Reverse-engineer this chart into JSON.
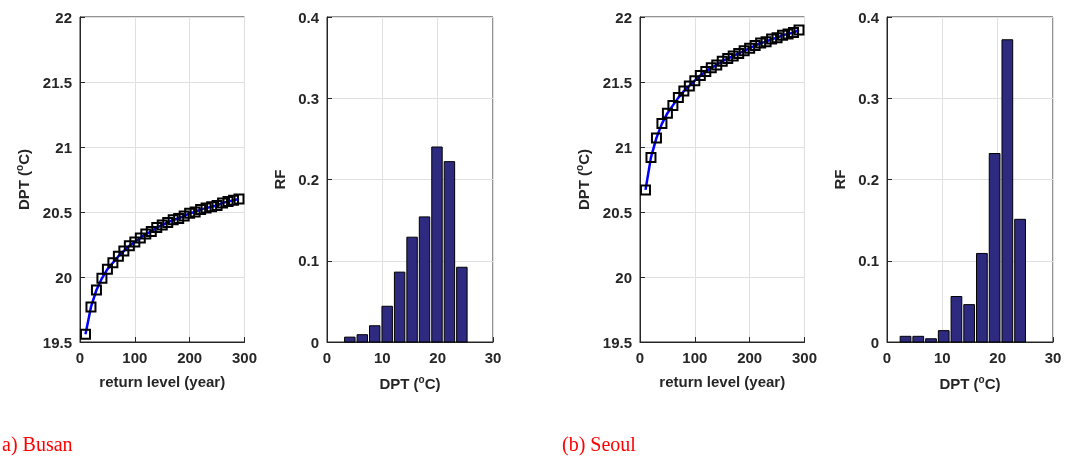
{
  "chart_data": [
    {
      "type": "line",
      "xlabel": "return level (year)",
      "ylabel": "DPT ($^{o}$C)",
      "x": [
        10,
        20,
        30,
        40,
        50,
        60,
        70,
        80,
        90,
        100,
        110,
        120,
        130,
        140,
        150,
        160,
        170,
        180,
        190,
        200,
        210,
        220,
        230,
        240,
        250,
        260,
        270,
        280,
        290
      ],
      "series": [
        {
          "color": "#0000ff",
          "values": [
            19.56,
            19.77,
            19.9,
            19.99,
            20.06,
            20.11,
            20.16,
            20.2,
            20.24,
            20.27,
            20.3,
            20.33,
            20.35,
            20.38,
            20.4,
            20.42,
            20.44,
            20.45,
            20.47,
            20.49,
            20.5,
            20.52,
            20.53,
            20.54,
            20.55,
            20.57,
            20.58,
            20.59,
            20.6
          ]
        }
      ],
      "marker": "square",
      "xlim": [
        0,
        300
      ],
      "xticks": [
        0,
        100,
        200,
        300
      ],
      "ylim": [
        19.5,
        22
      ],
      "yticks": [
        19.5,
        20,
        20.5,
        21,
        21.5,
        22
      ],
      "grid": true,
      "annotations": [
        "a) Busan"
      ]
    },
    {
      "type": "histogram",
      "xlabel": "DPT ($^{o}$C)",
      "ylabel": "RF",
      "bins": [
        3,
        5.25,
        7.5,
        9.75,
        12,
        14.25,
        16.5,
        18.75,
        21,
        23.25,
        25.5
      ],
      "values": [
        0.006,
        0.009,
        0.02,
        0.044,
        0.086,
        0.129,
        0.154,
        0.24,
        0.222,
        0.092
      ],
      "color": "#2e2a7f",
      "xlim": [
        0,
        30
      ],
      "xticks": [
        0,
        10,
        20,
        30
      ],
      "ylim": [
        0,
        0.4
      ],
      "yticks": [
        0,
        0.1,
        0.2,
        0.3,
        0.4
      ],
      "grid": true
    },
    {
      "type": "line",
      "xlabel": "return level (year)",
      "ylabel": "DPT ($^{o}$C)",
      "x": [
        10,
        20,
        30,
        40,
        50,
        60,
        70,
        80,
        90,
        100,
        110,
        120,
        130,
        140,
        150,
        160,
        170,
        180,
        190,
        200,
        210,
        220,
        230,
        240,
        250,
        260,
        270,
        280,
        290
      ],
      "series": [
        {
          "color": "#0000ff",
          "values": [
            20.67,
            20.92,
            21.07,
            21.18,
            21.26,
            21.32,
            21.38,
            21.43,
            21.47,
            21.51,
            21.55,
            21.58,
            21.61,
            21.63,
            21.66,
            21.68,
            21.7,
            21.72,
            21.74,
            21.76,
            21.78,
            21.8,
            21.81,
            21.83,
            21.84,
            21.86,
            21.87,
            21.88,
            21.9
          ]
        }
      ],
      "marker": "square",
      "xlim": [
        0,
        300
      ],
      "xticks": [
        0,
        100,
        200,
        300
      ],
      "ylim": [
        19.5,
        22
      ],
      "yticks": [
        19.5,
        20,
        20.5,
        21,
        21.5,
        22
      ],
      "grid": true,
      "annotations": [
        "(b) Seoul"
      ]
    },
    {
      "type": "histogram",
      "xlabel": "DPT ($^{o}$C)",
      "ylabel": "RF",
      "bins": [
        2.2,
        4.5,
        6.8,
        9.1,
        11.4,
        13.7,
        16,
        18.3,
        20.6,
        22.9,
        25.2
      ],
      "values": [
        0.007,
        0.007,
        0.004,
        0.014,
        0.056,
        0.046,
        0.109,
        0.232,
        0.372,
        0.151
      ],
      "color": "#2e2a7f",
      "xlim": [
        0,
        30
      ],
      "xticks": [
        0,
        10,
        20,
        30
      ],
      "ylim": [
        0,
        0.4
      ],
      "yticks": [
        0,
        0.1,
        0.2,
        0.3,
        0.4
      ],
      "grid": true
    }
  ]
}
